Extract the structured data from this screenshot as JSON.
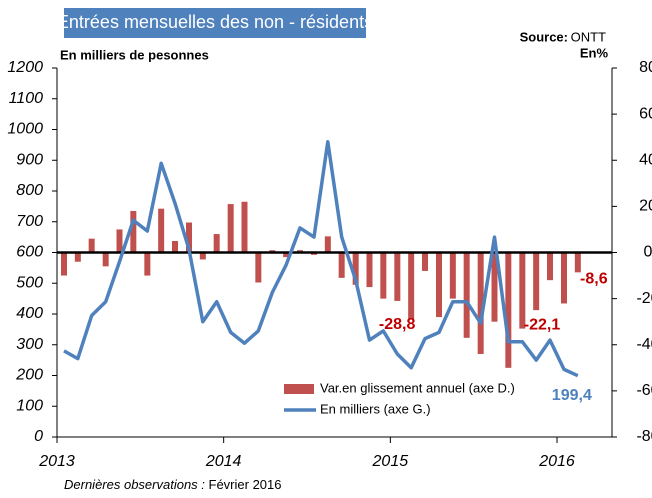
{
  "chart_data": {
    "type": "combo",
    "title": "Entrées mensuelles des non - résidents",
    "source_label": "Source:",
    "source": "ONTT",
    "y_label": "En milliers de pesonnes",
    "y2_label": "En%",
    "footnote": "Dernières observations : ",
    "footnote_date": "Février 2016",
    "x": [
      2013.042,
      2013.125,
      2013.208,
      2013.292,
      2013.375,
      2013.458,
      2013.542,
      2013.625,
      2013.708,
      2013.792,
      2013.875,
      2013.958,
      2014.042,
      2014.125,
      2014.208,
      2014.292,
      2014.375,
      2014.458,
      2014.542,
      2014.625,
      2014.708,
      2014.792,
      2014.875,
      2014.958,
      2015.042,
      2015.125,
      2015.208,
      2015.292,
      2015.375,
      2015.458,
      2015.542,
      2015.625,
      2015.708,
      2015.792,
      2015.875,
      2015.958,
      2016.042,
      2016.125
    ],
    "xlim": [
      2013,
      2016.33
    ],
    "xticks": [
      2013,
      2014,
      2015,
      2016
    ],
    "ylim": [
      0,
      1200
    ],
    "yticks": [
      0,
      100,
      200,
      300,
      400,
      500,
      600,
      700,
      800,
      900,
      1000,
      1100,
      1200
    ],
    "y2lim": [
      -80,
      80
    ],
    "y2ticks": [
      -80,
      -60,
      -40,
      -20,
      0,
      20,
      40,
      60,
      80
    ],
    "series": [
      {
        "name": "Var.en glissement annuel (axe D.)",
        "type": "bar",
        "axis": "y2",
        "color": "#c0504d",
        "values": [
          -10,
          -4,
          6,
          -6,
          10,
          18,
          -10,
          19,
          5,
          13,
          -3,
          8,
          21,
          22,
          -13,
          1,
          -2,
          1,
          -1,
          7,
          -11,
          -14,
          -15,
          -20,
          -21,
          -28.8,
          -8,
          -28,
          -20,
          -37,
          -44,
          -30,
          -50,
          -33,
          -25,
          -12,
          -22.1,
          -8.6
        ],
        "value_labels": [
          null,
          null,
          null,
          null,
          null,
          null,
          null,
          null,
          null,
          null,
          null,
          null,
          null,
          null,
          null,
          null,
          null,
          null,
          null,
          null,
          null,
          null,
          null,
          null,
          null,
          "-28,8",
          null,
          null,
          null,
          null,
          null,
          null,
          null,
          null,
          null,
          null,
          "-22,1",
          "-8,6"
        ]
      },
      {
        "name": "En milliers (axe G.)",
        "type": "line",
        "color": "#4f81bd",
        "values": [
          280,
          255,
          395,
          440,
          570,
          705,
          670,
          890,
          760,
          610,
          375,
          440,
          340,
          305,
          345,
          470,
          560,
          680,
          650,
          960,
          650,
          510,
          315,
          345,
          270,
          225,
          320,
          340,
          440,
          440,
          370,
          650,
          310,
          310,
          250,
          315,
          220,
          199.4
        ],
        "value_labels": [
          null,
          null,
          null,
          null,
          null,
          null,
          null,
          null,
          null,
          null,
          null,
          null,
          null,
          null,
          null,
          null,
          null,
          null,
          null,
          null,
          null,
          null,
          null,
          null,
          null,
          null,
          null,
          null,
          null,
          null,
          null,
          null,
          null,
          null,
          null,
          null,
          null,
          "199,4"
        ]
      }
    ]
  }
}
